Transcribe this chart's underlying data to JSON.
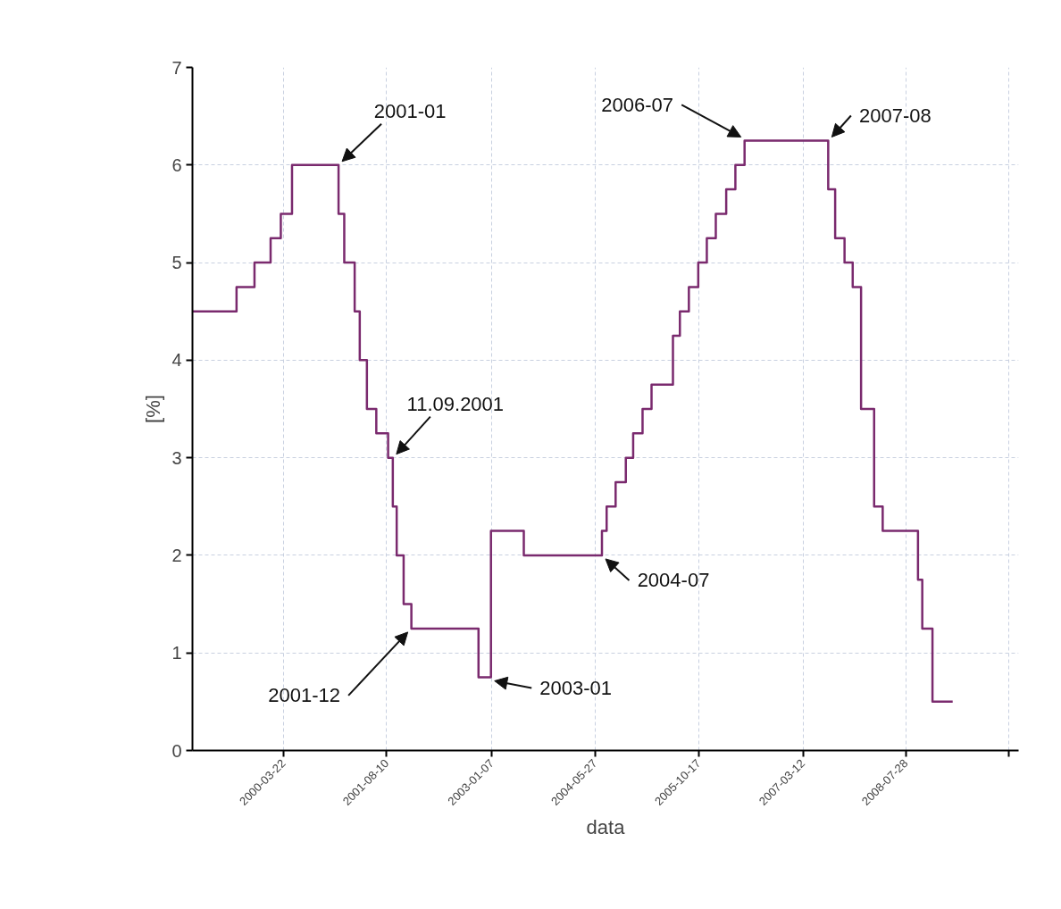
{
  "chart_data": {
    "type": "step",
    "xlabel": "data",
    "ylabel": "[%]",
    "x": [
      "1999-01-01",
      "1999-08-05",
      "1999-11-01",
      "2000-01-19",
      "2000-03-09",
      "2000-05-03",
      "2000-12-17",
      "2001-01-14",
      "2001-03-06",
      "2001-03-31",
      "2001-05-05",
      "2001-06-20",
      "2001-08-17",
      "2001-09-09",
      "2001-09-28",
      "2001-11-01",
      "2001-12-09",
      "2002-11-03",
      "2003-01-03",
      "2003-06-13",
      "2004-06-30",
      "2004-07-23",
      "2004-09-05",
      "2004-10-25",
      "2004-11-30",
      "2005-01-15",
      "2005-02-28",
      "2005-06-13",
      "2005-07-17",
      "2005-08-30",
      "2005-10-15",
      "2005-11-26",
      "2006-01-09",
      "2006-03-01",
      "2006-04-15",
      "2006-05-30",
      "2007-07-14",
      "2007-08-17",
      "2007-10-02",
      "2007-11-11",
      "2007-12-22",
      "2008-02-24",
      "2008-04-06",
      "2008-09-26",
      "2008-10-17",
      "2008-12-06",
      "2009-03-15"
    ],
    "series": [
      {
        "color": "#7a2a6e",
        "values": [
          4.5,
          4.75,
          5.0,
          5.25,
          5.5,
          6.0,
          5.5,
          5.0,
          4.5,
          4.0,
          3.5,
          3.25,
          3.0,
          2.5,
          2.0,
          1.5,
          1.25,
          0.75,
          2.25,
          2.0,
          2.25,
          2.5,
          2.75,
          3.0,
          3.25,
          3.5,
          3.75,
          4.25,
          4.5,
          4.75,
          5.0,
          5.25,
          5.5,
          5.75,
          6.0,
          6.25,
          5.75,
          5.25,
          5.0,
          4.75,
          3.5,
          2.5,
          2.25,
          1.75,
          1.25,
          0.5,
          0.5
        ]
      }
    ],
    "xlim": [
      "1999-01-01",
      "2010-02-01"
    ],
    "ylim": [
      0,
      7
    ],
    "xticks": [
      "2000-03-22",
      "2001-08-10",
      "2003-01-07",
      "2004-05-27",
      "2005-10-17",
      "2007-03-12",
      "2008-07-28",
      {
        "value": "2009-12-16",
        "label": null
      }
    ],
    "yticks": [
      0,
      1,
      2,
      3,
      4,
      5,
      6,
      7
    ],
    "grid": true,
    "annotations": [
      {
        "text": "2001-01",
        "x": "2000-12-17",
        "y": 6.0
      },
      {
        "text": "11.09.2001",
        "x": "2001-09-09",
        "y": 3.0
      },
      {
        "text": "2001-12",
        "x": "2001-12-09",
        "y": 1.25
      },
      {
        "text": "2003-01",
        "x": "2003-01-03",
        "y": 0.75
      },
      {
        "text": "2004-07",
        "x": "2004-06-30",
        "y": 2.0
      },
      {
        "text": "2006-07",
        "x": "2006-05-30",
        "y": 6.25
      },
      {
        "text": "2007-08",
        "x": "2007-07-14",
        "y": 6.25
      }
    ]
  }
}
